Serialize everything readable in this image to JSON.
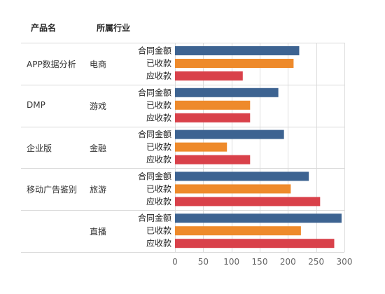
{
  "headers": {
    "product": "产品名",
    "industry": "所属行业"
  },
  "chart_data": {
    "type": "bar",
    "orientation": "horizontal",
    "series_names": [
      "合同金额",
      "已收款",
      "应收款"
    ],
    "colors": [
      "#3d6391",
      "#ee8a2b",
      "#d9414a"
    ],
    "grid": true,
    "xlim": [
      0,
      300
    ],
    "xticks": [
      0,
      50,
      100,
      150,
      200,
      250,
      300
    ],
    "groups": [
      {
        "product": "APP数据分析",
        "industry": "电商",
        "values": [
          220,
          210,
          120
        ]
      },
      {
        "product": "DMP",
        "industry": "游戏",
        "values": [
          183,
          133,
          133
        ]
      },
      {
        "product": "企业版",
        "industry": "金融",
        "values": [
          193,
          92,
          133
        ]
      },
      {
        "product": "移动广告鉴别",
        "industry": "旅游",
        "values": [
          237,
          205,
          257
        ]
      },
      {
        "product": "",
        "industry": "直播",
        "values": [
          295,
          223,
          282
        ]
      }
    ]
  }
}
